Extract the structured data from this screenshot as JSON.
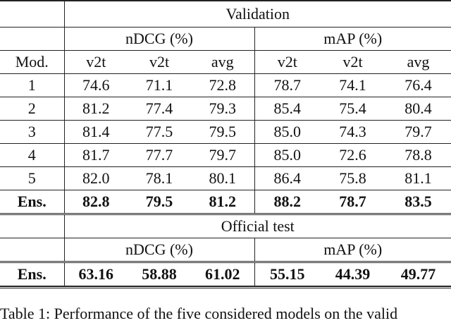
{
  "table": {
    "validation_header": "Validation",
    "official_header": "Official test",
    "metric_ndcg": "nDCG (%)",
    "metric_map": "mAP (%)",
    "col_mod": "Mod.",
    "subcols": [
      "v2t",
      "v2t",
      "avg",
      "v2t",
      "v2t",
      "avg"
    ],
    "validation_rows": [
      {
        "label": "1",
        "values": [
          "74.6",
          "71.1",
          "72.8",
          "78.7",
          "74.1",
          "76.4"
        ]
      },
      {
        "label": "2",
        "values": [
          "81.2",
          "77.4",
          "79.3",
          "85.4",
          "75.4",
          "80.4"
        ]
      },
      {
        "label": "3",
        "values": [
          "81.4",
          "77.5",
          "79.5",
          "85.0",
          "74.3",
          "79.7"
        ]
      },
      {
        "label": "4",
        "values": [
          "81.7",
          "77.7",
          "79.7",
          "85.0",
          "72.6",
          "78.8"
        ]
      },
      {
        "label": "5",
        "values": [
          "82.0",
          "78.1",
          "80.1",
          "86.4",
          "75.8",
          "81.1"
        ]
      }
    ],
    "validation_ens": {
      "label": "Ens.",
      "values": [
        "82.8",
        "79.5",
        "81.2",
        "88.2",
        "78.7",
        "83.5"
      ]
    },
    "official_ens": {
      "label": "Ens.",
      "values": [
        "63.16",
        "58.88",
        "61.02",
        "55.15",
        "44.39",
        "49.77"
      ]
    }
  },
  "caption": "Table 1: Performance of the five considered models on the valid"
}
